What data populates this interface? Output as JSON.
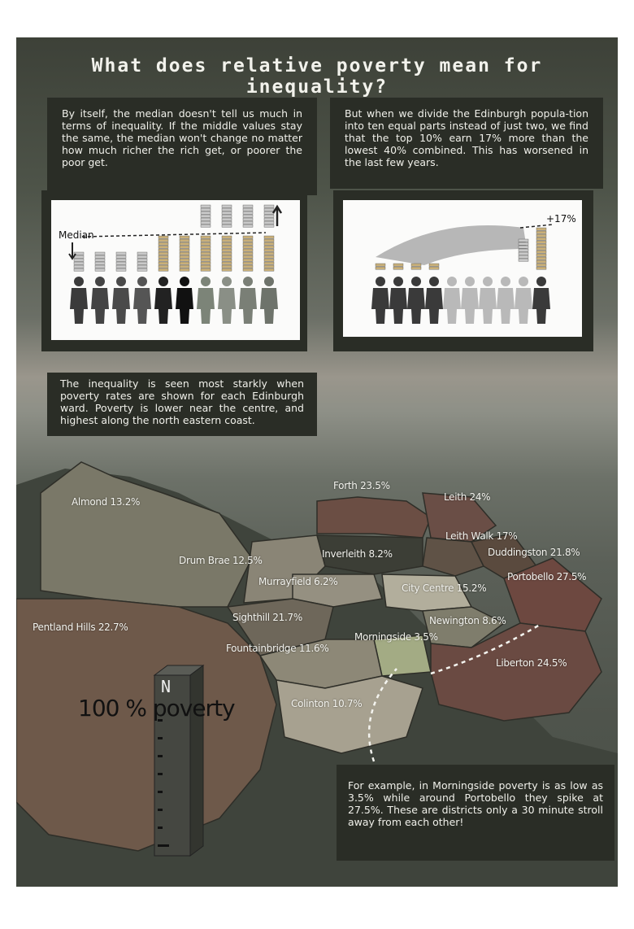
{
  "title": "What does relative poverty mean for inequality?",
  "intro_left": "By itself, the median doesn't tell us much in terms of inequality. If the middle values stay the same, the median won't change no matter how much richer the rich get, or poorer the poor get.",
  "intro_right": "But when we divide the Edinburgh popula-tion into ten equal parts instead of just two, we find that the top 10% earn 17% more than the lowest 40% combined. This has worsened in the last few years.",
  "median_label": "Median",
  "difference_label": "+17%",
  "ward_intro": "The inequality is seen most starkly when poverty rates are shown for each Edinburgh ward. Poverty is lower near the centre, and highest along the north eastern coast.",
  "wards": [
    {
      "name": "Almond 13.2%",
      "rate": 13.2
    },
    {
      "name": "Forth 23.5%",
      "rate": 23.5
    },
    {
      "name": "Leith 24%",
      "rate": 24
    },
    {
      "name": "Leith Walk 17%",
      "rate": 17
    },
    {
      "name": "Drum Brae 12.5%",
      "rate": 12.5
    },
    {
      "name": "Inverleith 8.2%",
      "rate": 8.2
    },
    {
      "name": "Duddingston 21.8%",
      "rate": 21.8
    },
    {
      "name": "Murrayfield 6.2%",
      "rate": 6.2
    },
    {
      "name": "Portobello 27.5%",
      "rate": 27.5
    },
    {
      "name": "City Centre 15.2%",
      "rate": 15.2
    },
    {
      "name": "Pentland Hills 22.7%",
      "rate": 22.7
    },
    {
      "name": "Sighthill 21.7%",
      "rate": 21.7
    },
    {
      "name": "Newington 8.6%",
      "rate": 8.6
    },
    {
      "name": "Morningside 3.5%",
      "rate": 3.5
    },
    {
      "name": "Fountainbridge 11.6%",
      "rate": 11.6
    },
    {
      "name": "Liberton 24.5%",
      "rate": 24.5
    },
    {
      "name": "Colinton 10.7%",
      "rate": 10.7
    }
  ],
  "scale_label": "100 % poverty",
  "north_label": "N",
  "example_text": "For example, in Morningside poverty is as low as 3.5% while around Portobello they spike at 27.5%. These are districts only a 30 minute stroll away from each other!",
  "colors": {
    "background": "#4f544c",
    "textbox": "#2a2d26",
    "high_poverty": "#6b4a40",
    "low_poverty": "#a9b08a"
  }
}
